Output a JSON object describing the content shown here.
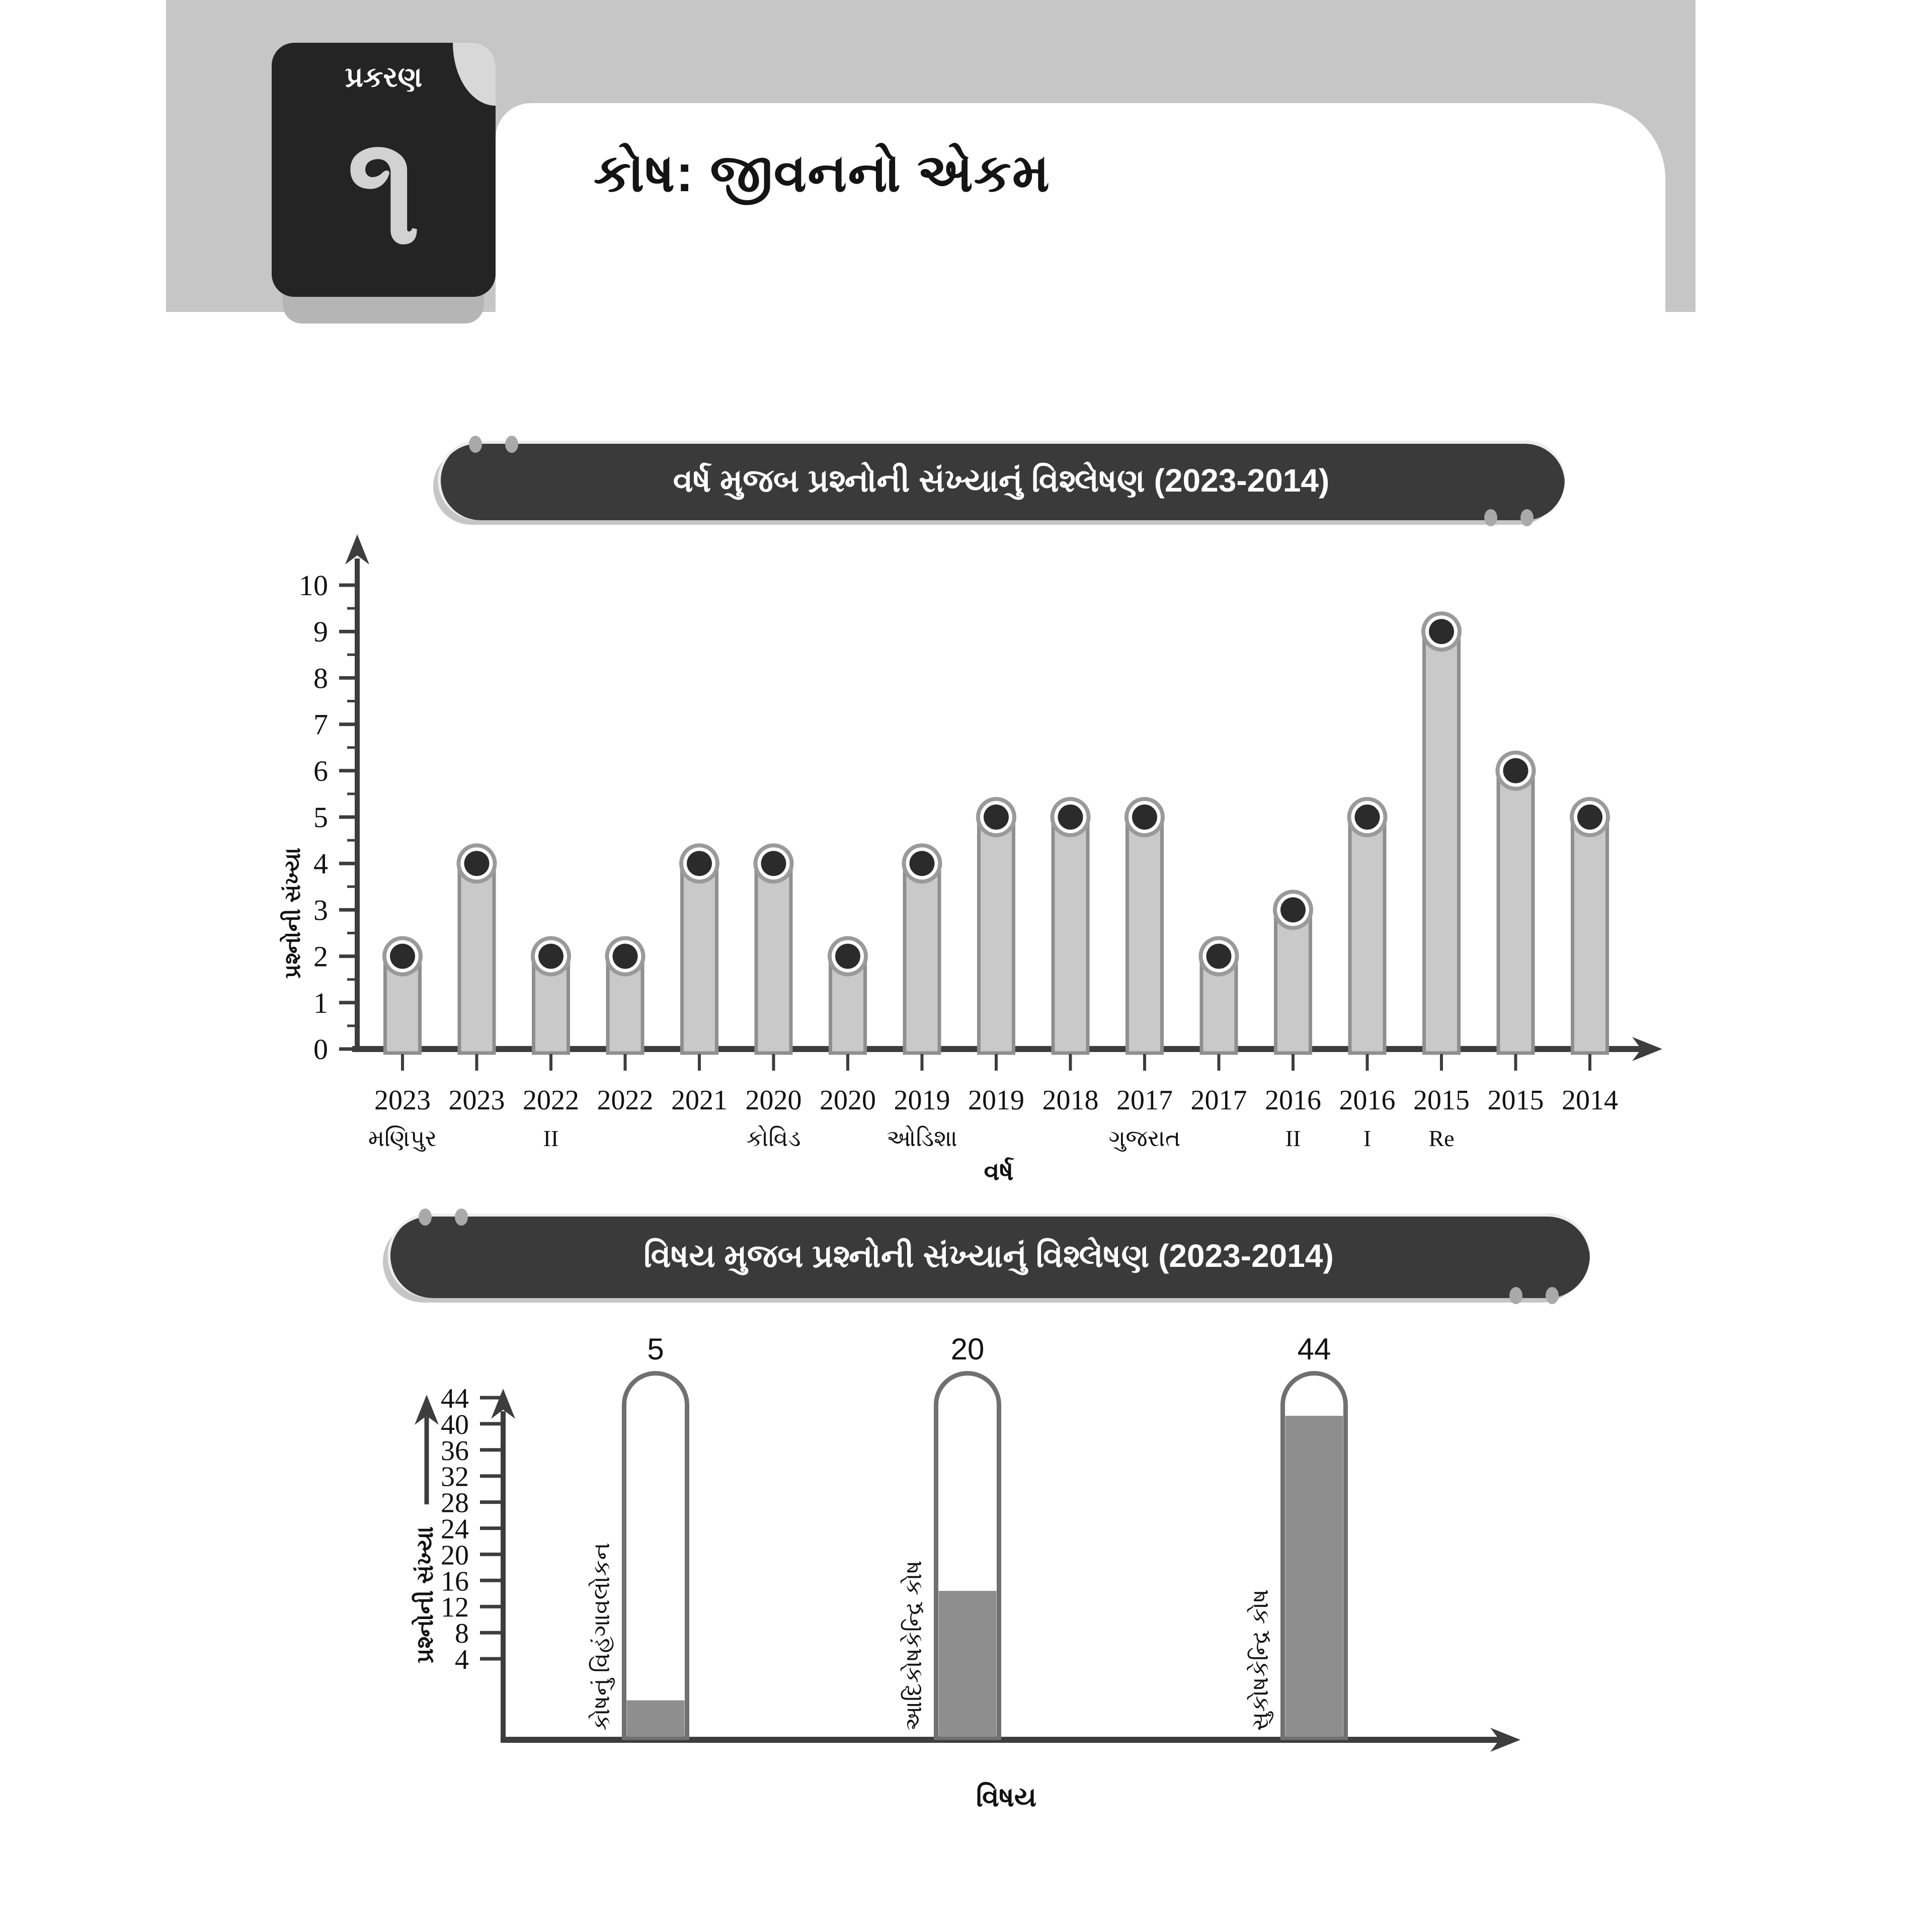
{
  "colors": {
    "header_band": "#c6c6c6",
    "badge_bg": "#242424",
    "badge_number": "#d2d2d2",
    "banner_bg": "#3a3a3a",
    "banner_text": "#ffffff",
    "axis": "#3d3d3d",
    "text": "#111111",
    "bar_fill": "#c9c9c9",
    "bar_border": "#8f8f8f",
    "dot_ring": "#9a9a9a",
    "dot_white": "#ffffff",
    "dot_core": "#2b2b2b",
    "tube_border": "#707070",
    "tube_fill": "#8e8e8e"
  },
  "header": {
    "chapter_label": "પ્રકરણ",
    "chapter_number": "૧",
    "title": "કોષ: જીવનનો એકમ"
  },
  "chart_data": [
    {
      "type": "bar",
      "title": "વર્ષ મુજબ પ્રશ્નોની સંખ્યાનું વિશ્લેષણ (2023-2014)",
      "xlabel": "વર્ષ",
      "ylabel": "પ્રશ્નોની સંખ્યા",
      "ylim": [
        0,
        10
      ],
      "yticks": [
        0,
        1,
        2,
        3,
        4,
        5,
        6,
        7,
        8,
        9,
        10
      ],
      "grid": false,
      "categories": [
        "2023",
        "2023",
        "2022",
        "2022",
        "2021",
        "2020",
        "2020",
        "2019",
        "2019",
        "2018",
        "2017",
        "2017",
        "2016",
        "2016",
        "2015",
        "2015",
        "2014"
      ],
      "sublabels": [
        "મણિપુર",
        "",
        "II",
        "",
        "",
        "કોવિડ",
        "",
        "ઓડિશા",
        "",
        "",
        "ગુજરાત",
        "",
        "II",
        "I",
        "Re",
        "",
        ""
      ],
      "values": [
        2,
        4,
        2,
        2,
        4,
        4,
        2,
        4,
        5,
        5,
        5,
        2,
        3,
        5,
        9,
        6,
        5
      ]
    },
    {
      "type": "bar",
      "title": "વિષય મુજબ પ્રશ્નોની સંખ્યાનું વિશ્લેષણ (2023-2014)",
      "xlabel": "વિષય",
      "ylabel": "પ્રશ્નોની સંખ્યા",
      "ylim": [
        0,
        46
      ],
      "yticks": [
        4,
        8,
        12,
        16,
        20,
        24,
        28,
        32,
        36,
        40,
        44
      ],
      "grid": false,
      "categories": [
        "કોષનું વિહંગાવલોકન",
        "આદિકોષકેન્દ્રિ કોષ",
        "સુકોષકેન્દ્રિ કોષ"
      ],
      "values": [
        5,
        20,
        44
      ]
    }
  ]
}
